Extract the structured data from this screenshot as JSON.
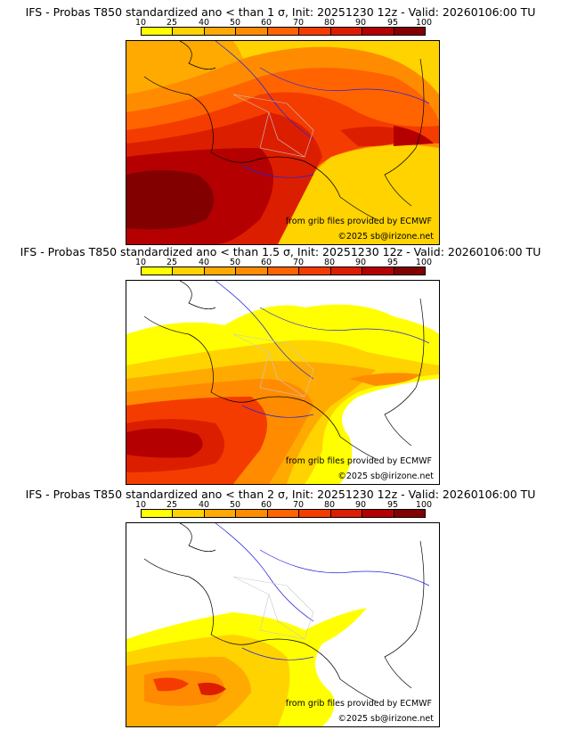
{
  "legend": {
    "ticks": [
      "10",
      "25",
      "40",
      "50",
      "60",
      "70",
      "80",
      "90",
      "95",
      "100"
    ],
    "colors": [
      "#ffff00",
      "#ffd300",
      "#ffaa00",
      "#ff8c00",
      "#ff6400",
      "#f53c00",
      "#dc1e00",
      "#b40000",
      "#820000"
    ]
  },
  "credits": {
    "source": "from grib files provided by ECMWF",
    "copyright": "©2025 sb@irizone.net"
  },
  "panels": [
    {
      "title": "IFS - Probas T850  standardized ano < than 1 σ, Init: 20251230 12z - Valid: 20260106:00 TU",
      "threshold": "1 σ"
    },
    {
      "title": "IFS - Probas T850  standardized ano < than 1.5 σ, Init: 20251230 12z - Valid: 20260106:00 TU",
      "threshold": "1.5 σ"
    },
    {
      "title": "IFS - Probas T850  standardized ano < than 2 σ, Init: 20251230 12z - Valid: 20260106:00 TU",
      "threshold": "2 σ"
    }
  ]
}
